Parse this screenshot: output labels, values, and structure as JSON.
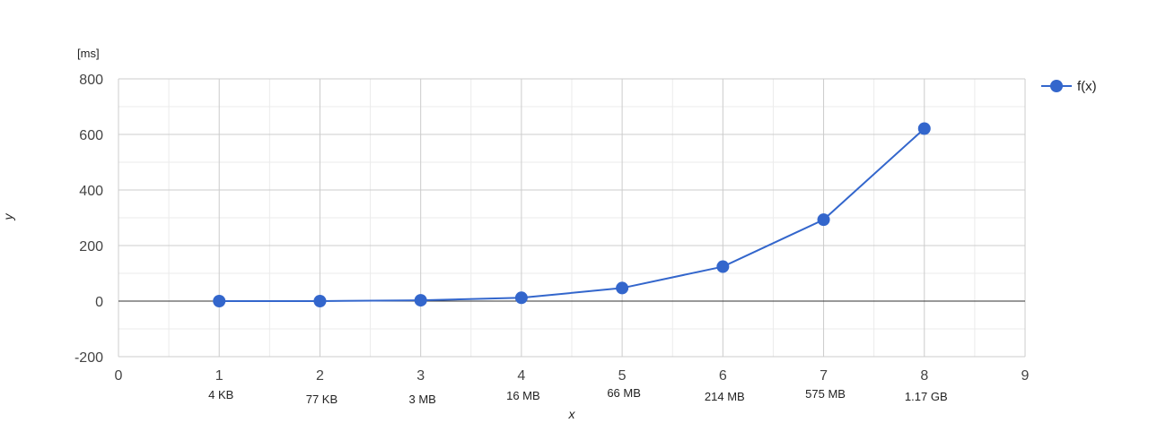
{
  "chart_data": {
    "type": "line",
    "x": [
      1,
      2,
      3,
      4,
      5,
      6,
      7,
      8
    ],
    "series": [
      {
        "name": "f(x)",
        "values": [
          0,
          0,
          3,
          12,
          47,
          124,
          293,
          621
        ],
        "color": "#3366cc"
      }
    ],
    "size_labels": [
      "4 KB",
      "77 KB",
      "3 MB",
      "16 MB",
      "66 MB",
      "214 MB",
      "575 MB",
      "1.17 GB"
    ],
    "xlabel": "x",
    "ylabel": "y",
    "yunit": "[ms]",
    "xlim": [
      0,
      9
    ],
    "ylim": [
      -200,
      800
    ],
    "xticks": [
      0,
      1,
      2,
      3,
      4,
      5,
      6,
      7,
      8,
      9
    ],
    "yticks": [
      -200,
      0,
      200,
      400,
      600,
      800
    ],
    "grid": true,
    "legend": "top-right"
  }
}
